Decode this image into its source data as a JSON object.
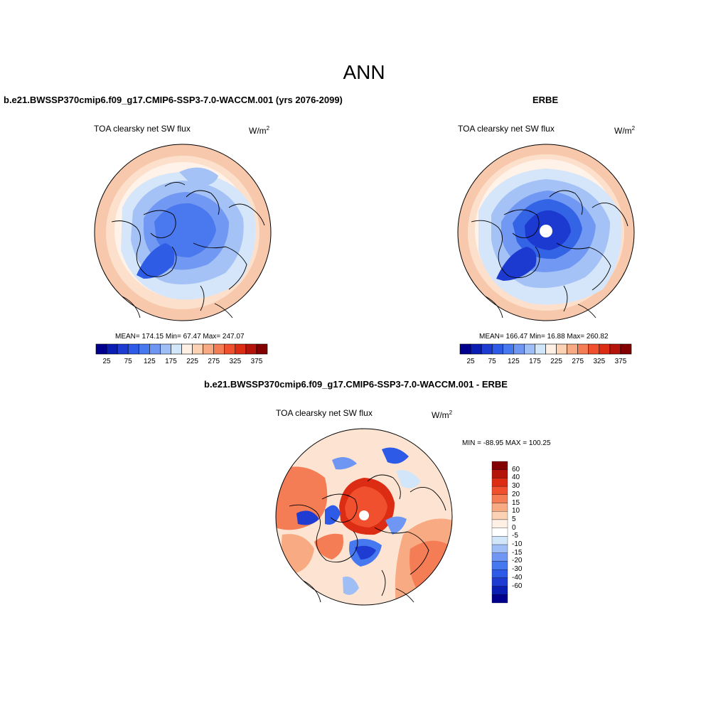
{
  "title": "ANN",
  "left_panel": {
    "header": "b.e21.BWSSP370cmip6.f09_g17.CMIP6-SSP3-7.0-WACCM.001 (yrs 2076-2099)",
    "variable": "TOA clearsky net SW flux",
    "units": "W/m",
    "units_sup": "2",
    "stats": "MEAN= 174.15  Min=  67.47  Max= 247.07"
  },
  "right_panel": {
    "header": "ERBE",
    "variable": "TOA clearsky net SW flux",
    "units": "W/m",
    "units_sup": "2",
    "stats": "MEAN= 166.47  Min=  16.88  Max= 260.82"
  },
  "diff_panel": {
    "header": "b.e21.BWSSP370cmip6.f09_g17.CMIP6-SSP3-7.0-WACCM.001 - ERBE",
    "variable": "TOA clearsky net SW flux",
    "units": "W/m",
    "units_sup": "2",
    "minmax": "MIN = -88.95 MAX = 100.25"
  },
  "colorbar_main": {
    "colors": [
      "#00008c",
      "#0a1eb4",
      "#1e3cd2",
      "#2d5ae6",
      "#4678f0",
      "#6e96f2",
      "#a0bef6",
      "#d2e6fa",
      "#fff0e6",
      "#fcd2b4",
      "#f8aa82",
      "#f57d55",
      "#f0502d",
      "#dc2d14",
      "#b4140a",
      "#820000"
    ],
    "ticks": [
      "25",
      "75",
      "125",
      "175",
      "225",
      "275",
      "325",
      "375"
    ]
  },
  "colorbar_diff": {
    "colors": [
      "#00008c",
      "#0a1eb4",
      "#1e3cd2",
      "#2d5ae6",
      "#4678f0",
      "#6e96f2",
      "#a0bef6",
      "#d2e6fa",
      "#ffffff",
      "#fff0e6",
      "#fcd2b4",
      "#f8aa82",
      "#f57d55",
      "#f0502d",
      "#dc2d14",
      "#b4140a",
      "#820000"
    ],
    "labels": [
      "60",
      "40",
      "30",
      "20",
      "15",
      "10",
      "5",
      "0",
      "-5",
      "-10",
      "-15",
      "-20",
      "-30",
      "-40",
      "-60"
    ]
  }
}
